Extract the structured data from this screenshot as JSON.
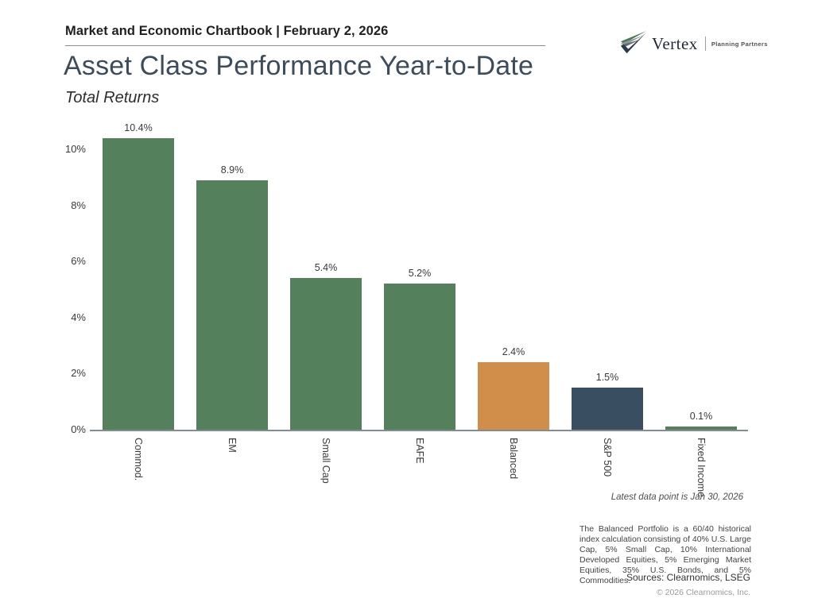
{
  "header": {
    "chartbook_label": "Market and Economic Chartbook | February 2, 2026"
  },
  "logo": {
    "brand": "Vertex",
    "tagline": "Planning Partners"
  },
  "title": "Asset Class Performance Year-to-Date",
  "subtitle": "Total Returns",
  "chart_data": {
    "type": "bar",
    "title": "Asset Class Performance Year-to-Date",
    "subtitle": "Total Returns",
    "categories": [
      "Commod.",
      "EM",
      "Small Cap",
      "EAFE",
      "Balanced",
      "S&P 500",
      "Fixed Income"
    ],
    "values": [
      10.4,
      8.9,
      5.4,
      5.2,
      2.4,
      1.5,
      0.1
    ],
    "value_labels": [
      "10.4%",
      "8.9%",
      "5.4%",
      "5.2%",
      "2.4%",
      "1.5%",
      "0.1%"
    ],
    "bar_colors": [
      "#54815c",
      "#54815c",
      "#54815c",
      "#54815c",
      "#d18e4b",
      "#394e61",
      "#54815c"
    ],
    "xlabel": "",
    "ylabel": "",
    "ylim": [
      0,
      10.4
    ],
    "yticks": [
      "0%",
      "2%",
      "4%",
      "6%",
      "8%",
      "10%"
    ],
    "ytick_values": [
      0,
      2,
      4,
      6,
      8,
      10
    ],
    "grid": false,
    "legend": null
  },
  "footnotes": {
    "latest_data": "Latest data point is Jan 30, 2026",
    "disclaimer": "The Balanced Portfolio is a 60/40 historical index calculation consisting of 40% U.S. Large Cap, 5% Small Cap, 10% International Developed Equities, 5% Emerging Market Equities, 35% U.S. Bonds, and 5% Commodities.",
    "sources": "Sources: Clearnomics, LSEG",
    "copyright": "© 2026 Clearnomics, Inc."
  },
  "colors": {
    "bar_green": "#54815c",
    "bar_orange": "#d18e4b",
    "bar_navy": "#394e61",
    "title": "#3d4c5a",
    "axis_line": "#818c94",
    "logo_green": "#4a7a52",
    "logo_gray": "#8f979e",
    "logo_slate": "#5d6a75",
    "logo_navy": "#2b3a4d"
  }
}
